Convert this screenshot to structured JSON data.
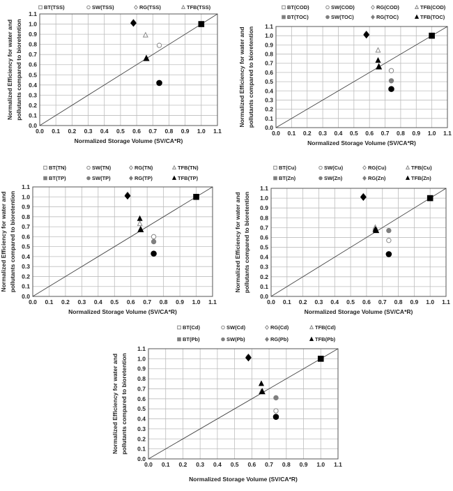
{
  "chart_data": [
    {
      "type": "scatter",
      "xlabel": "Normalized Storage Volume  (SV/CA*R)",
      "ylabel": [
        "Normalized Efficiency for water and",
        "pollutants compared to bioretention"
      ],
      "xlim": [
        0,
        1.1
      ],
      "ylim": [
        0,
        1.1
      ],
      "xticks": [
        "0.0",
        "0.1",
        "0.2",
        "0.3",
        "0.4",
        "0.5",
        "0.6",
        "0.7",
        "0.8",
        "0.9",
        "1.0",
        "1.1"
      ],
      "yticks": [
        "0.0",
        "0.1",
        "0.2",
        "0.3",
        "0.4",
        "0.5",
        "0.6",
        "0.7",
        "0.8",
        "0.9",
        "1.0",
        "1.1"
      ],
      "grid": true,
      "reference_line": "y = x",
      "legend_position": "top",
      "series": [
        {
          "name": "BT(TSS)",
          "marker": "square",
          "style": "open",
          "points": [
            [
              1.0,
              1.0
            ]
          ]
        },
        {
          "name": "SW(TSS)",
          "marker": "circle",
          "style": "open",
          "points": [
            [
              0.74,
              0.79
            ]
          ]
        },
        {
          "name": "RG(TSS)",
          "marker": "diamond",
          "style": "open",
          "points": [
            [
              0.58,
              1.02
            ]
          ]
        },
        {
          "name": "TFB(TSS)",
          "marker": "triangle",
          "style": "open",
          "points": [
            [
              0.655,
              0.89
            ]
          ]
        }
      ],
      "water": [
        {
          "marker": "square",
          "points": [
            [
              1.0,
              1.0
            ]
          ]
        },
        {
          "marker": "circle",
          "points": [
            [
              0.74,
              0.42
            ]
          ]
        },
        {
          "marker": "diamond",
          "points": [
            [
              0.58,
              1.01
            ]
          ]
        },
        {
          "marker": "triangle",
          "points": [
            [
              0.66,
              0.66
            ]
          ]
        }
      ]
    },
    {
      "type": "scatter",
      "xlabel": "Normalized Storage Volume  (SV/CA*R)",
      "ylabel": [
        "Normalized Efficiency for water and",
        "pollutants compared to bioretention"
      ],
      "xlim": [
        0,
        1.1
      ],
      "ylim": [
        0,
        1.1
      ],
      "xticks": [
        "0.0",
        "0.1",
        "0.2",
        "0.3",
        "0.4",
        "0.5",
        "0.6",
        "0.7",
        "0.8",
        "0.9",
        "1.0",
        "1.1"
      ],
      "yticks": [
        "0.0",
        "0.1",
        "0.2",
        "0.3",
        "0.4",
        "0.5",
        "0.6",
        "0.7",
        "0.8",
        "0.9",
        "1.0",
        "1.1"
      ],
      "grid": true,
      "reference_line": "y = x",
      "legend_position": "top",
      "series": [
        {
          "name": "BT(COD)",
          "marker": "square",
          "style": "open",
          "points": [
            [
              1.0,
              1.0
            ]
          ]
        },
        {
          "name": "SW(COD)",
          "marker": "circle",
          "style": "open",
          "points": [
            [
              0.74,
              0.62
            ]
          ]
        },
        {
          "name": "RG(COD)",
          "marker": "diamond",
          "style": "open",
          "points": [
            [
              0.58,
              1.02
            ]
          ]
        },
        {
          "name": "TFB(COD)",
          "marker": "triangle",
          "style": "open",
          "points": [
            [
              0.655,
              0.84
            ]
          ]
        },
        {
          "name": "BT(TOC)",
          "marker": "square",
          "style": "gray",
          "points": [
            [
              1.0,
              1.0
            ]
          ]
        },
        {
          "name": "SW(TOC)",
          "marker": "circle",
          "style": "gray",
          "points": [
            [
              0.74,
              0.51
            ]
          ]
        },
        {
          "name": "RG(TOC)",
          "marker": "diamond",
          "style": "gray",
          "points": [
            [
              0.58,
              1.02
            ]
          ]
        },
        {
          "name": "TFB(TOC)",
          "marker": "triangle",
          "style": "black",
          "points": [
            [
              0.655,
              0.73
            ]
          ]
        }
      ],
      "water": [
        {
          "marker": "square",
          "points": [
            [
              1.0,
              1.0
            ]
          ]
        },
        {
          "marker": "circle",
          "points": [
            [
              0.74,
              0.42
            ]
          ]
        },
        {
          "marker": "diamond",
          "points": [
            [
              0.58,
              1.01
            ]
          ]
        },
        {
          "marker": "triangle",
          "points": [
            [
              0.66,
              0.66
            ]
          ]
        }
      ]
    },
    {
      "type": "scatter",
      "xlabel": "Normalized Storage Volume  (SV/CA*R)",
      "ylabel": [
        "Normalized Efficiency for water and",
        "pollutants compared to bioretention"
      ],
      "xlim": [
        0,
        1.1
      ],
      "ylim": [
        0,
        1.1
      ],
      "xticks": [
        "0.0",
        "0.1",
        "0.2",
        "0.3",
        "0.4",
        "0.5",
        "0.6",
        "0.7",
        "0.8",
        "0.9",
        "1.0",
        "1.1"
      ],
      "yticks": [
        "0.0",
        "0.1",
        "0.2",
        "0.3",
        "0.4",
        "0.5",
        "0.6",
        "0.7",
        "0.8",
        "0.9",
        "1.0",
        "1.1"
      ],
      "grid": true,
      "reference_line": "y = x",
      "legend_position": "top",
      "series": [
        {
          "name": "BT(TN)",
          "marker": "square",
          "style": "open",
          "points": [
            [
              1.0,
              1.0
            ]
          ]
        },
        {
          "name": "SW(TN)",
          "marker": "circle",
          "style": "open",
          "points": [
            [
              0.74,
              0.6
            ]
          ]
        },
        {
          "name": "RG(TN)",
          "marker": "diamond",
          "style": "open",
          "points": [
            [
              0.58,
              1.02
            ]
          ]
        },
        {
          "name": "TFB(TN)",
          "marker": "triangle",
          "style": "open",
          "points": [
            [
              0.655,
              0.73
            ]
          ]
        },
        {
          "name": "BT(TP)",
          "marker": "square",
          "style": "gray",
          "points": [
            [
              1.0,
              1.0
            ]
          ]
        },
        {
          "name": "SW(TP)",
          "marker": "circle",
          "style": "gray",
          "points": [
            [
              0.74,
              0.55
            ]
          ]
        },
        {
          "name": "RG(TP)",
          "marker": "diamond",
          "style": "gray",
          "points": [
            [
              0.58,
              1.02
            ]
          ]
        },
        {
          "name": "TFB(TP)",
          "marker": "triangle",
          "style": "black",
          "points": [
            [
              0.655,
              0.78
            ]
          ]
        }
      ],
      "water": [
        {
          "marker": "square",
          "points": [
            [
              1.0,
              1.0
            ]
          ]
        },
        {
          "marker": "circle",
          "points": [
            [
              0.74,
              0.43
            ]
          ]
        },
        {
          "marker": "diamond",
          "points": [
            [
              0.58,
              1.01
            ]
          ]
        },
        {
          "marker": "triangle",
          "points": [
            [
              0.66,
              0.67
            ]
          ]
        }
      ]
    },
    {
      "type": "scatter",
      "xlabel": "Normalized Storage Volume  (SV/CA*R)",
      "ylabel": [
        "Normalized Efficiency for water and",
        "pollutants compared to bioretention"
      ],
      "xlim": [
        0,
        1.1
      ],
      "ylim": [
        0,
        1.1
      ],
      "xticks": [
        "0.0",
        "0.1",
        "0.2",
        "0.3",
        "0.4",
        "0.5",
        "0.6",
        "0.7",
        "0.8",
        "0.9",
        "1.0",
        "1.1"
      ],
      "yticks": [
        "0.0",
        "0.1",
        "0.2",
        "0.3",
        "0.4",
        "0.5",
        "0.6",
        "0.7",
        "0.8",
        "0.9",
        "1.0",
        "1.1"
      ],
      "grid": true,
      "reference_line": "y = x",
      "legend_position": "top",
      "series": [
        {
          "name": "BT(Cu)",
          "marker": "square",
          "style": "open",
          "points": [
            [
              1.0,
              1.0
            ]
          ]
        },
        {
          "name": "SW(Cu)",
          "marker": "circle",
          "style": "open",
          "points": [
            [
              0.74,
              0.57
            ]
          ]
        },
        {
          "name": "RG(Cu)",
          "marker": "diamond",
          "style": "open",
          "points": [
            [
              0.58,
              1.02
            ]
          ]
        },
        {
          "name": "TFB(Cu)",
          "marker": "triangle",
          "style": "open",
          "points": [
            [
              0.655,
              0.7
            ]
          ]
        },
        {
          "name": "BT(Zn)",
          "marker": "square",
          "style": "gray",
          "points": [
            [
              1.0,
              1.0
            ]
          ]
        },
        {
          "name": "SW(Zn)",
          "marker": "circle",
          "style": "gray",
          "points": [
            [
              0.74,
              0.67
            ]
          ]
        },
        {
          "name": "RG(Zn)",
          "marker": "diamond",
          "style": "gray",
          "points": [
            [
              0.58,
              1.02
            ]
          ]
        },
        {
          "name": "TFB(Zn)",
          "marker": "triangle",
          "style": "black",
          "points": [
            [
              0.655,
              0.68
            ]
          ]
        }
      ],
      "water": [
        {
          "marker": "square",
          "points": [
            [
              1.0,
              1.0
            ]
          ]
        },
        {
          "marker": "circle",
          "points": [
            [
              0.74,
              0.43
            ]
          ]
        },
        {
          "marker": "diamond",
          "points": [
            [
              0.58,
              1.01
            ]
          ]
        },
        {
          "marker": "triangle",
          "points": [
            [
              0.66,
              0.67
            ]
          ]
        }
      ]
    },
    {
      "type": "scatter",
      "xlabel": "Normalized Storage Volume  (SV/CA*R)",
      "ylabel": [
        "Normalized Efficiency for water and",
        "pollutants compared to bioretention"
      ],
      "xlim": [
        0,
        1.1
      ],
      "ylim": [
        0,
        1.1
      ],
      "xticks": [
        "0.0",
        "0.1",
        "0.2",
        "0.3",
        "0.4",
        "0.5",
        "0.6",
        "0.7",
        "0.8",
        "0.9",
        "1.0",
        "1.1"
      ],
      "yticks": [
        "0.0",
        "0.1",
        "0.2",
        "0.3",
        "0.4",
        "0.5",
        "0.6",
        "0.7",
        "0.8",
        "0.9",
        "1.0",
        "1.1"
      ],
      "grid": true,
      "reference_line": "y = x",
      "legend_position": "top",
      "series": [
        {
          "name": "BT(Cd)",
          "marker": "square",
          "style": "open",
          "points": [
            [
              1.0,
              1.0
            ]
          ]
        },
        {
          "name": "SW(Cd)",
          "marker": "circle",
          "style": "open",
          "points": [
            [
              0.74,
              0.48
            ]
          ]
        },
        {
          "name": "RG(Cd)",
          "marker": "diamond",
          "style": "open",
          "points": [
            [
              0.58,
              1.02
            ]
          ]
        },
        {
          "name": "TFB(Cd)",
          "marker": "triangle",
          "style": "open",
          "points": [
            [
              0.655,
              0.67
            ]
          ]
        },
        {
          "name": "BT(Pb)",
          "marker": "square",
          "style": "gray",
          "points": [
            [
              1.0,
              1.0
            ]
          ]
        },
        {
          "name": "SW(Pb)",
          "marker": "circle",
          "style": "gray",
          "points": [
            [
              0.74,
              0.61
            ]
          ]
        },
        {
          "name": "RG(Pb)",
          "marker": "diamond",
          "style": "gray",
          "points": [
            [
              0.58,
              1.02
            ]
          ]
        },
        {
          "name": "TFB(Pb)",
          "marker": "triangle",
          "style": "black",
          "points": [
            [
              0.655,
              0.75
            ]
          ]
        }
      ],
      "water": [
        {
          "marker": "square",
          "points": [
            [
              1.0,
              1.0
            ]
          ]
        },
        {
          "marker": "circle",
          "points": [
            [
              0.74,
              0.42
            ]
          ]
        },
        {
          "marker": "diamond",
          "points": [
            [
              0.58,
              1.01
            ]
          ]
        },
        {
          "marker": "triangle",
          "points": [
            [
              0.66,
              0.67
            ]
          ]
        }
      ]
    }
  ],
  "colors": {
    "open_fill": "#ffffff",
    "open_stroke": "#888888",
    "gray": "#7f7f7f",
    "black": "#000000",
    "grid": "#bdbdbd"
  }
}
